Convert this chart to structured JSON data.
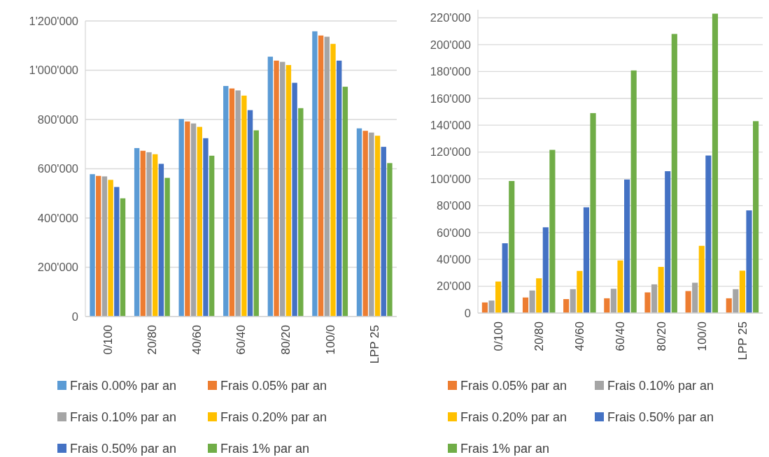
{
  "chart_data": [
    {
      "type": "bar",
      "categories": [
        "0/100",
        "20/80",
        "40/60",
        "60/40",
        "80/20",
        "100/0",
        "LPP 25"
      ],
      "series": [
        {
          "name": "Frais 0.00% par an",
          "color": "#5b9bd5",
          "values": [
            578000,
            684000,
            802000,
            936000,
            1055000,
            1158000,
            764000
          ]
        },
        {
          "name": "Frais 0.05% par an",
          "color": "#ed7d31",
          "values": [
            571000,
            673000,
            792000,
            926000,
            1039000,
            1141000,
            754000
          ]
        },
        {
          "name": "Frais 0.10% par an",
          "color": "#a5a5a5",
          "values": [
            569000,
            667000,
            784000,
            918000,
            1034000,
            1136000,
            747000
          ]
        },
        {
          "name": "Frais 0.20% par an",
          "color": "#ffc000",
          "values": [
            555000,
            659000,
            770000,
            897000,
            1021000,
            1107000,
            734000
          ]
        },
        {
          "name": "Frais 0.50% par an",
          "color": "#4472c4",
          "values": [
            526000,
            620000,
            724000,
            838000,
            949000,
            1039000,
            689000
          ]
        },
        {
          "name": "Frais 1% par an",
          "color": "#70ad47",
          "values": [
            480000,
            563000,
            653000,
            756000,
            846000,
            933000,
            623000
          ]
        }
      ],
      "ylim": [
        0,
        1200000
      ],
      "yticks": [
        0,
        {
          "value": 200000,
          "label": "200'000"
        },
        {
          "value": 400000,
          "label": "400'000"
        },
        {
          "value": 600000,
          "label": "600'000"
        },
        {
          "value": 800000,
          "label": "800'000"
        },
        {
          "value": 1000000,
          "label": "1'000'000"
        },
        {
          "value": 1200000,
          "label": "1'200'000"
        }
      ],
      "grid": "y",
      "legend": "bottom"
    },
    {
      "type": "bar",
      "categories": [
        "0/100",
        "20/80",
        "40/60",
        "60/40",
        "80/20",
        "100/0",
        "LPP 25"
      ],
      "series": [
        {
          "name": "Frais 0.05% par an",
          "color": "#ed7d31",
          "values": [
            7900,
            11600,
            10400,
            11000,
            15400,
            16400,
            11000
          ]
        },
        {
          "name": "Frais 0.10% par an",
          "color": "#a5a5a5",
          "values": [
            9300,
            16800,
            17800,
            18100,
            21400,
            22600,
            17800
          ]
        },
        {
          "name": "Frais 0.20% par an",
          "color": "#ffc000",
          "values": [
            23500,
            25900,
            31400,
            39200,
            34400,
            50100,
            31600
          ]
        },
        {
          "name": "Frais 0.50% par an",
          "color": "#4472c4",
          "values": [
            52000,
            63900,
            78800,
            99500,
            105700,
            117400,
            76500
          ]
        },
        {
          "name": "Frais 1% par an",
          "color": "#70ad47",
          "values": [
            98400,
            121600,
            149000,
            180800,
            208000,
            223100,
            143000
          ]
        }
      ],
      "ylim": [
        0,
        226000
      ],
      "yticks": [
        0,
        {
          "value": 20000,
          "label": "20'000"
        },
        {
          "value": 40000,
          "label": "40'000"
        },
        {
          "value": 60000,
          "label": "60'000"
        },
        {
          "value": 80000,
          "label": "80'000"
        },
        {
          "value": 100000,
          "label": "100'000"
        },
        {
          "value": 120000,
          "label": "120'000"
        },
        {
          "value": 140000,
          "label": "140'000"
        },
        {
          "value": 160000,
          "label": "160'000"
        },
        {
          "value": 180000,
          "label": "180'000"
        },
        {
          "value": 200000,
          "label": "200'000"
        },
        {
          "value": 220000,
          "label": "220'000"
        }
      ],
      "grid": "y",
      "legend": "bottom"
    }
  ]
}
